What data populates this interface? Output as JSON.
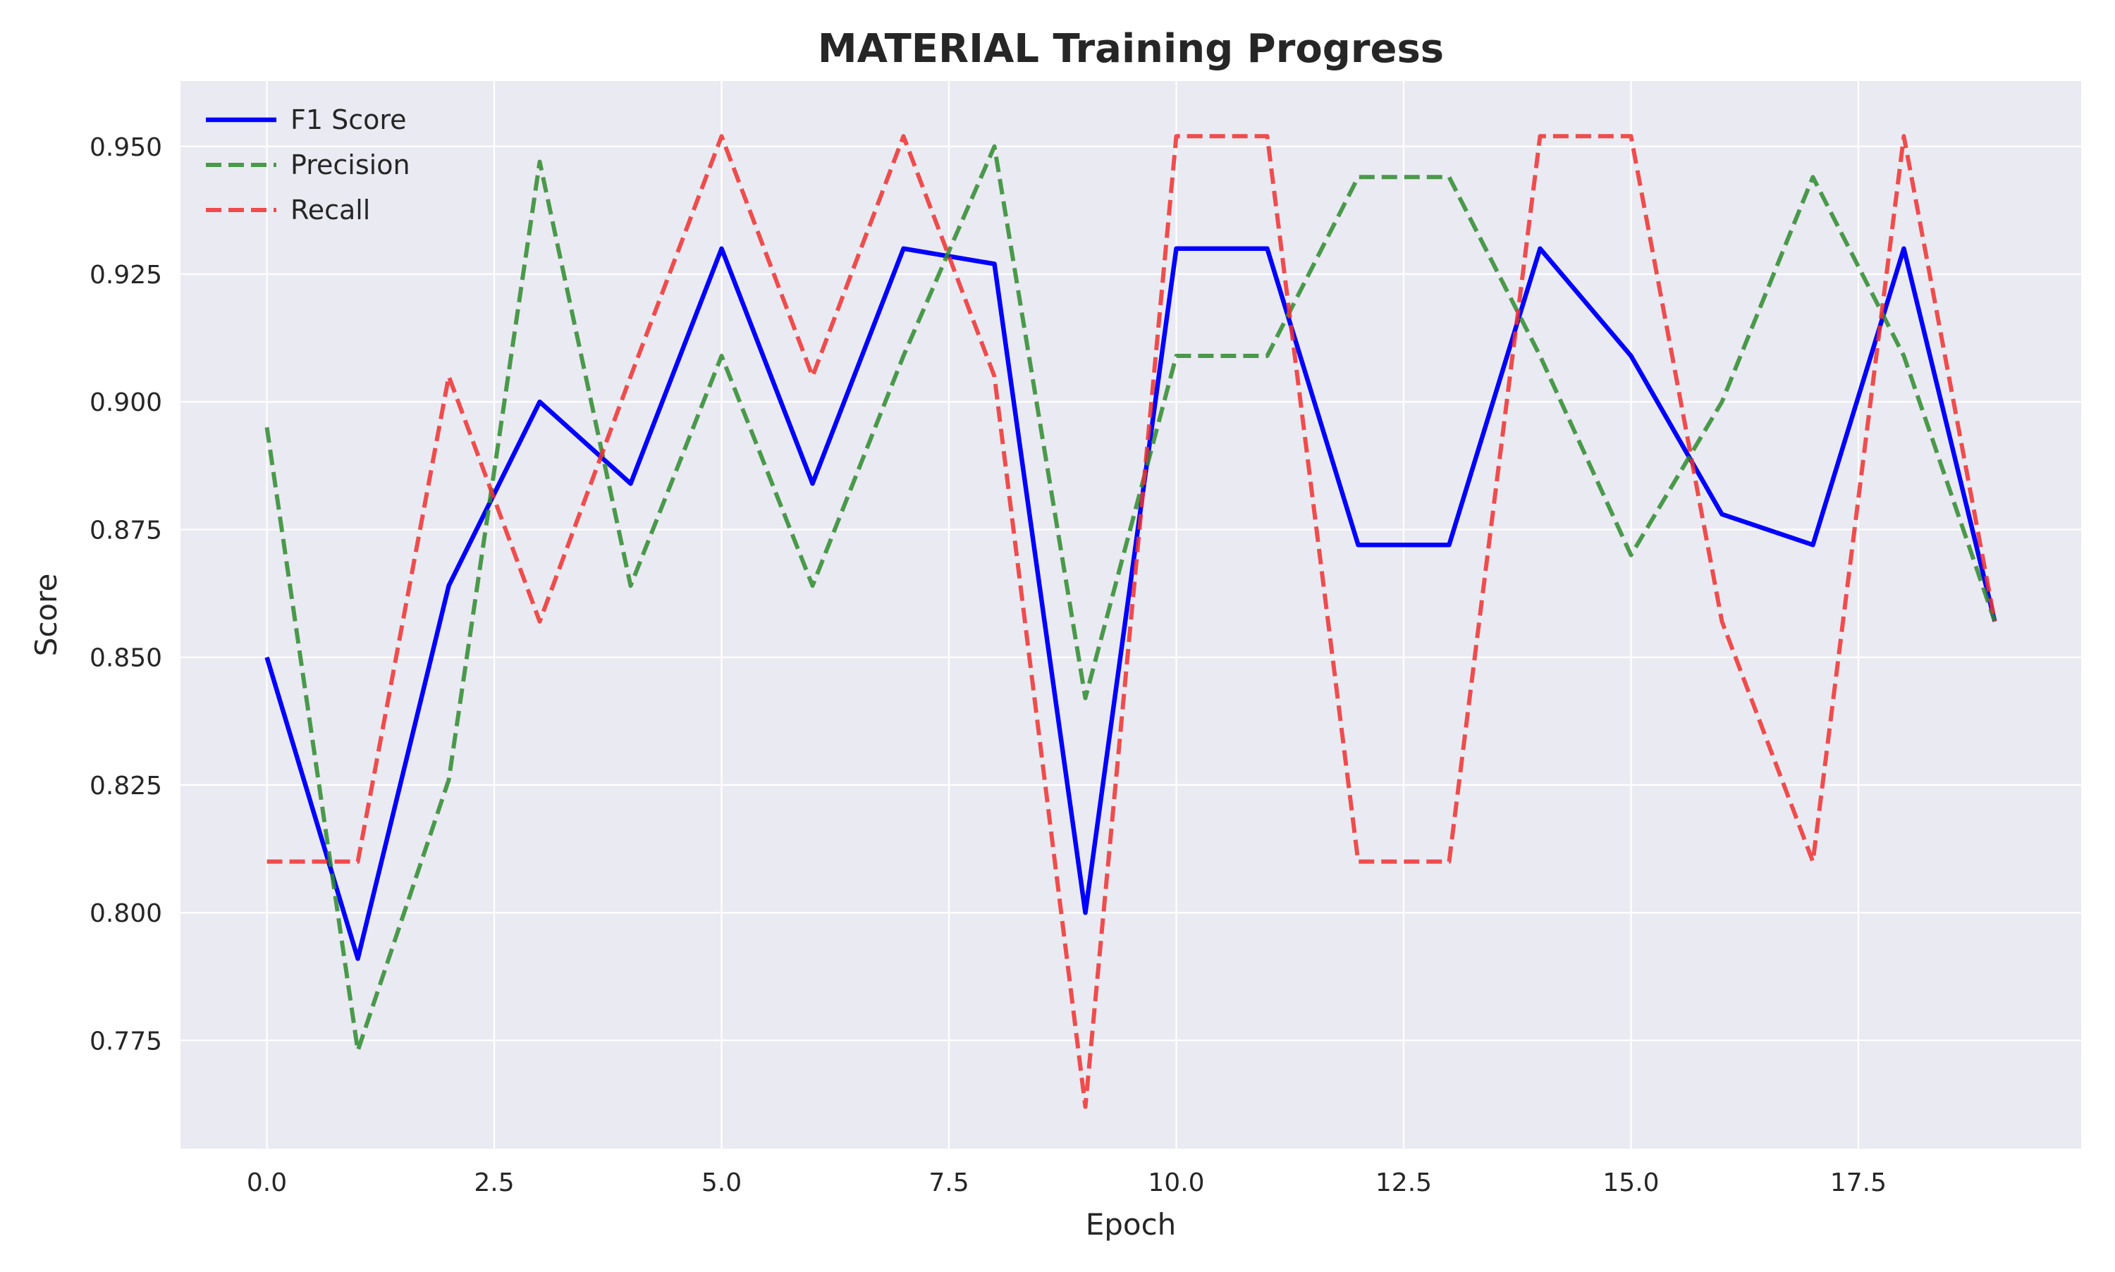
{
  "chart_data": {
    "type": "line",
    "title": "MATERIAL Training Progress",
    "xlabel": "Epoch",
    "ylabel": "Score",
    "xlim": [
      -0.95,
      19.95
    ],
    "ylim": [
      0.7538,
      0.9628
    ],
    "xticks": [
      0.0,
      2.5,
      5.0,
      7.5,
      10.0,
      12.5,
      15.0,
      17.5
    ],
    "xtick_labels": [
      "0.0",
      "2.5",
      "5.0",
      "7.5",
      "10.0",
      "12.5",
      "15.0",
      "17.5"
    ],
    "yticks": [
      0.775,
      0.8,
      0.825,
      0.85,
      0.875,
      0.9,
      0.925,
      0.95
    ],
    "ytick_labels": [
      "0.775",
      "0.800",
      "0.825",
      "0.850",
      "0.875",
      "0.900",
      "0.925",
      "0.950"
    ],
    "grid": true,
    "legend_position": "top-left",
    "background_color": "#eaeaf2",
    "x": [
      0,
      1,
      2,
      3,
      4,
      5,
      6,
      7,
      8,
      9,
      10,
      11,
      12,
      13,
      14,
      15,
      16,
      17,
      18,
      19
    ],
    "series": [
      {
        "name": "F1 Score",
        "color": "#0000ff",
        "dashed": false,
        "values": [
          0.85,
          0.791,
          0.864,
          0.9,
          0.884,
          0.93,
          0.884,
          0.93,
          0.927,
          0.8,
          0.93,
          0.93,
          0.872,
          0.872,
          0.93,
          0.909,
          0.878,
          0.872,
          0.93,
          0.857
        ]
      },
      {
        "name": "Precision",
        "color": "#2e8b2e",
        "dashed": true,
        "values": [
          0.895,
          0.773,
          0.826,
          0.947,
          0.864,
          0.909,
          0.864,
          0.909,
          0.95,
          0.842,
          0.909,
          0.909,
          0.944,
          0.944,
          0.909,
          0.87,
          0.9,
          0.944,
          0.909,
          0.857
        ]
      },
      {
        "name": "Recall",
        "color": "#f03030",
        "dashed": true,
        "values": [
          0.81,
          0.81,
          0.905,
          0.857,
          0.905,
          0.952,
          0.905,
          0.952,
          0.905,
          0.762,
          0.952,
          0.952,
          0.81,
          0.81,
          0.952,
          0.952,
          0.857,
          0.81,
          0.952,
          0.857
        ]
      }
    ]
  }
}
